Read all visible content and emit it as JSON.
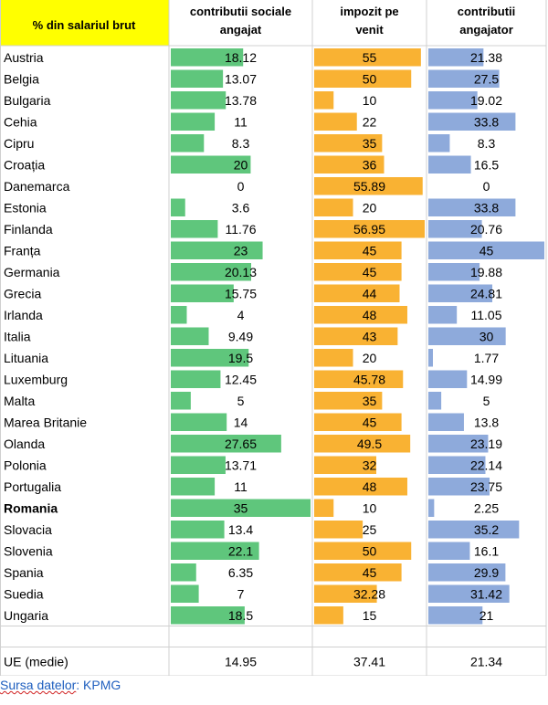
{
  "header": {
    "country_col": "% din salariul brut",
    "col1": [
      "contributii sociale",
      "angajat"
    ],
    "col2": [
      "impozit pe",
      "venit"
    ],
    "col3": [
      "contributii",
      "angajator"
    ]
  },
  "colors": {
    "header_bg": "#ffff00",
    "col1_bar": "#5fc67c",
    "col2_bar": "#f9b233",
    "col3_bar": "#8eaadb",
    "grid": "#d0d0d0",
    "source_text": "#1f5fbf"
  },
  "chart_data": {
    "type": "table",
    "bold_row": "Romania",
    "columns": [
      "contributii sociale angajat",
      "impozit pe venit",
      "contributii angajator"
    ],
    "rows": [
      {
        "country": "Austria",
        "values": [
          18.12,
          55,
          21.38
        ],
        "labels": [
          "18.12",
          "55",
          "21.38"
        ]
      },
      {
        "country": "Belgia",
        "values": [
          13.07,
          50,
          27.5
        ],
        "labels": [
          "13.07",
          "50",
          "27.5"
        ]
      },
      {
        "country": "Bulgaria",
        "values": [
          13.78,
          10,
          19.02
        ],
        "labels": [
          "13.78",
          "10",
          "19.02"
        ]
      },
      {
        "country": "Cehia",
        "values": [
          11,
          22,
          33.8
        ],
        "labels": [
          "11",
          "22",
          "33.8"
        ]
      },
      {
        "country": "Cipru",
        "values": [
          8.3,
          35,
          8.3
        ],
        "labels": [
          "8.3",
          "35",
          "8.3"
        ]
      },
      {
        "country": "Croația",
        "values": [
          20,
          36,
          16.5
        ],
        "labels": [
          "20",
          "36",
          "16.5"
        ]
      },
      {
        "country": "Danemarca",
        "values": [
          0,
          55.89,
          0
        ],
        "labels": [
          "0",
          "55.89",
          "0"
        ]
      },
      {
        "country": "Estonia",
        "values": [
          3.6,
          20,
          33.8
        ],
        "labels": [
          "3.6",
          "20",
          "33.8"
        ]
      },
      {
        "country": "Finlanda",
        "values": [
          11.76,
          56.95,
          20.76
        ],
        "labels": [
          "11.76",
          "56.95",
          "20.76"
        ]
      },
      {
        "country": "Franța",
        "values": [
          23,
          45,
          45
        ],
        "labels": [
          "23",
          "45",
          "45"
        ]
      },
      {
        "country": "Germania",
        "values": [
          20.13,
          45,
          19.88
        ],
        "labels": [
          "20.13",
          "45",
          "19.88"
        ]
      },
      {
        "country": "Grecia",
        "values": [
          15.75,
          44,
          24.81
        ],
        "labels": [
          "15.75",
          "44",
          "24.81"
        ]
      },
      {
        "country": "Irlanda",
        "values": [
          4,
          48,
          11.05
        ],
        "labels": [
          "4",
          "48",
          "11.05"
        ]
      },
      {
        "country": "Italia",
        "values": [
          9.49,
          43,
          30
        ],
        "labels": [
          "9.49",
          "43",
          "30"
        ]
      },
      {
        "country": "Lituania",
        "values": [
          19.5,
          20,
          1.77
        ],
        "labels": [
          "19.5",
          "20",
          "1.77"
        ]
      },
      {
        "country": "Luxemburg",
        "values": [
          12.45,
          45.78,
          14.99
        ],
        "labels": [
          "12.45",
          "45.78",
          "14.99"
        ]
      },
      {
        "country": "Malta",
        "values": [
          5,
          35,
          5
        ],
        "labels": [
          "5",
          "35",
          "5"
        ]
      },
      {
        "country": "Marea Britanie",
        "values": [
          14,
          45,
          13.8
        ],
        "labels": [
          "14",
          "45",
          "13.8"
        ]
      },
      {
        "country": "Olanda",
        "values": [
          27.65,
          49.5,
          23.19
        ],
        "labels": [
          "27.65",
          "49.5",
          "23.19"
        ]
      },
      {
        "country": "Polonia",
        "values": [
          13.71,
          32,
          22.14
        ],
        "labels": [
          "13.71",
          "32",
          "22.14"
        ]
      },
      {
        "country": "Portugalia",
        "values": [
          11,
          48,
          23.75
        ],
        "labels": [
          "11",
          "48",
          "23.75"
        ]
      },
      {
        "country": "Romania",
        "values": [
          35,
          10,
          2.25
        ],
        "labels": [
          "35",
          "10",
          "2.25"
        ]
      },
      {
        "country": "Slovacia",
        "values": [
          13.4,
          25,
          35.2
        ],
        "labels": [
          "13.4",
          "25",
          "35.2"
        ]
      },
      {
        "country": "Slovenia",
        "values": [
          22.1,
          50,
          16.1
        ],
        "labels": [
          "22.1",
          "50",
          "16.1"
        ]
      },
      {
        "country": "Spania",
        "values": [
          6.35,
          45,
          29.9
        ],
        "labels": [
          "6.35",
          "45",
          "29.9"
        ]
      },
      {
        "country": "Suedia",
        "values": [
          7,
          32.28,
          31.42
        ],
        "labels": [
          "7",
          "32.28",
          "31.42"
        ]
      },
      {
        "country": "Ungaria",
        "values": [
          18.5,
          15,
          21
        ],
        "labels": [
          "18.5",
          "15",
          "21"
        ]
      }
    ],
    "average": {
      "country": "UE (medie)",
      "labels": [
        "14.95",
        "37.41",
        "21.34"
      ]
    }
  },
  "source": {
    "part1": "Sursa datelor",
    "part2": ": KPMG"
  }
}
